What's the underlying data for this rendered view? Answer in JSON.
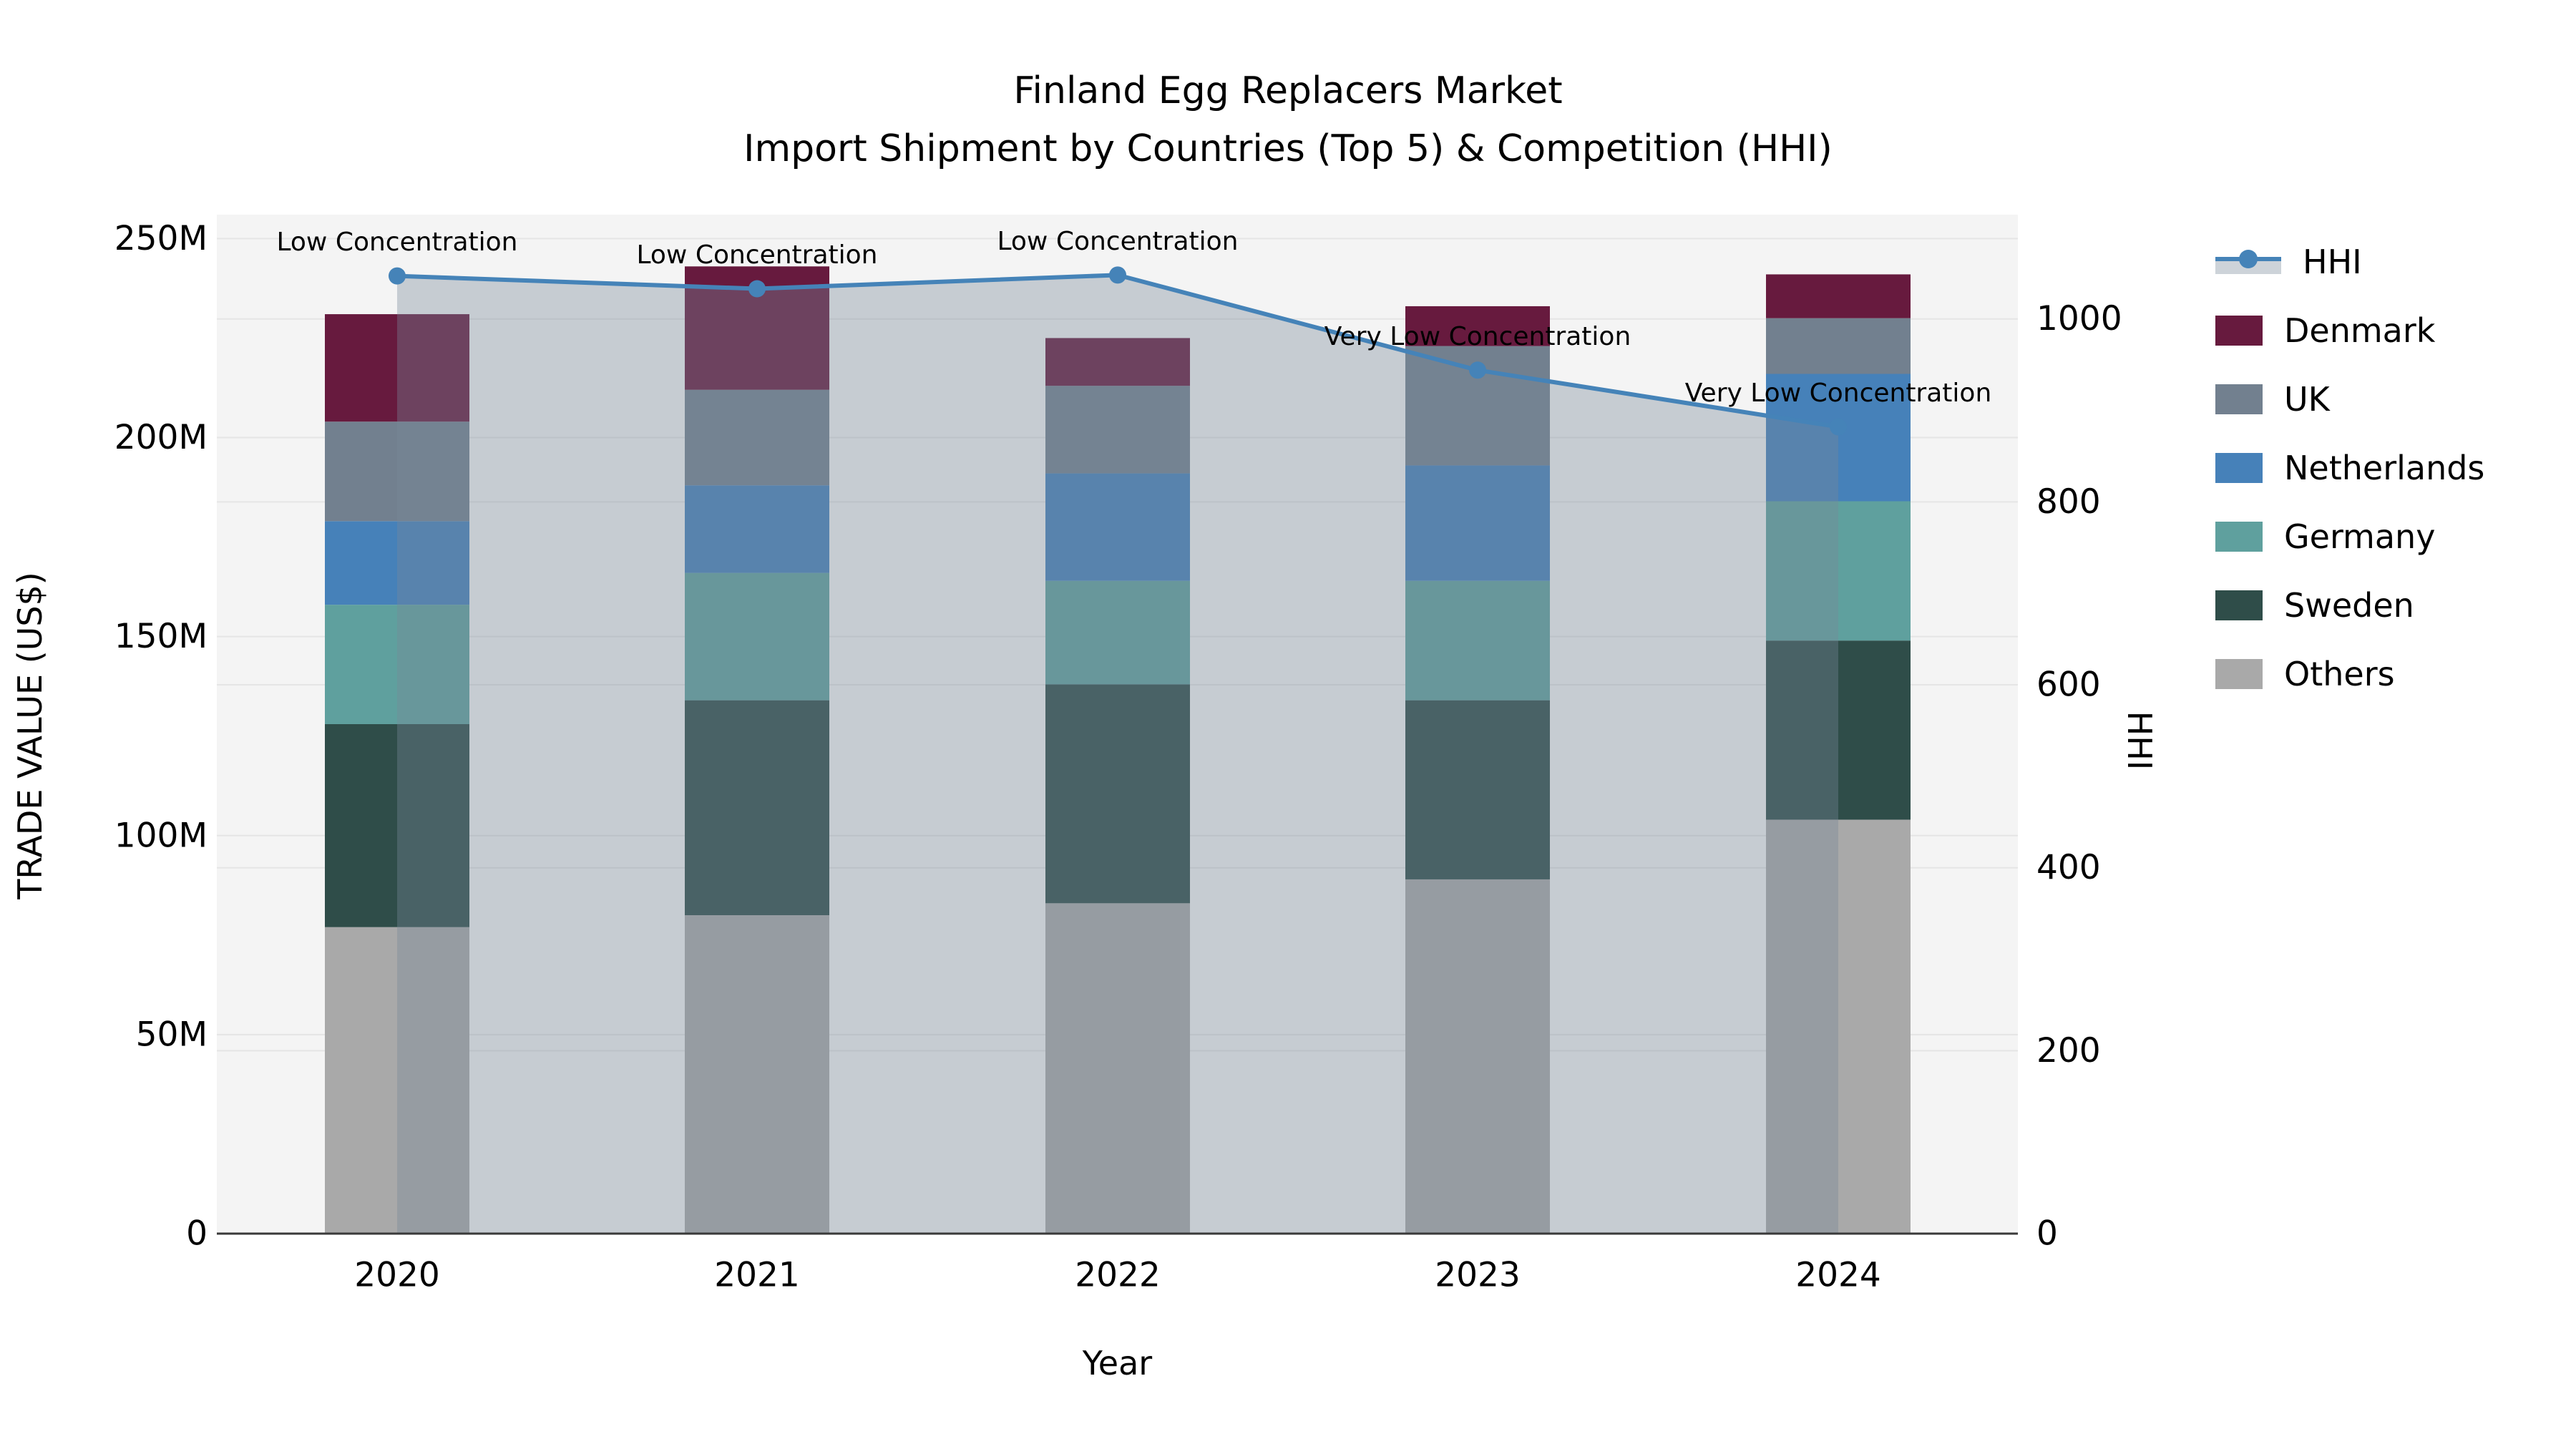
{
  "title": "Finland Egg Replacers Market",
  "subtitle": "Import Shipment by Countries (Top 5) & Competition (HHI)",
  "colors": {
    "figure_bg": "#ffffff",
    "plot_bg": "#f4f4f4",
    "grid": "#e5e5e5",
    "axis_line": "#3a3a3a",
    "text": "#000000",
    "hhi_line": "#4583b8",
    "hhi_band_fill": "rgba(119,136,153,0.37)"
  },
  "axes": {
    "x_label": "Year",
    "y_left_label": "TRADE VALUE (US$)",
    "y_right_label": "HHI",
    "y_left_tick_labels": [
      "0",
      "50M",
      "100M",
      "150M",
      "200M",
      "250M"
    ],
    "y_left_tick_values": [
      0,
      50,
      100,
      150,
      200,
      250
    ],
    "y_left_axis_top_value": 256,
    "y_right_tick_labels": [
      "0",
      "200",
      "400",
      "600",
      "800",
      "1000"
    ],
    "y_right_tick_values": [
      0,
      200,
      400,
      600,
      800,
      1000
    ],
    "y_right_axis_top_value": 1114,
    "grid": "on"
  },
  "chart_data": {
    "type": "combo: stacked bar (left axis) + line with shaded area (right axis)",
    "categories": [
      "2020",
      "2021",
      "2022",
      "2023",
      "2024"
    ],
    "unit": "US$ millions",
    "stack_order_bottom_to_top": [
      "Others",
      "Sweden",
      "Germany",
      "Netherlands",
      "UK",
      "Denmark"
    ],
    "series": [
      {
        "name": "Others",
        "color": "#a9a9a9",
        "values": [
          77,
          80,
          83,
          89,
          104
        ]
      },
      {
        "name": "Sweden",
        "color": "#2f4d49",
        "values": [
          51,
          54,
          55,
          45,
          45
        ]
      },
      {
        "name": "Germany",
        "color": "#5fa09e",
        "values": [
          30,
          32,
          26,
          30,
          35
        ]
      },
      {
        "name": "Netherlands",
        "color": "#4681b9",
        "values": [
          21,
          22,
          27,
          29,
          32
        ]
      },
      {
        "name": "UK",
        "color": "#72808f",
        "values": [
          25,
          24,
          22,
          30,
          14
        ]
      },
      {
        "name": "Denmark",
        "color": "#671a3e",
        "values": [
          27,
          31,
          12,
          10,
          11
        ]
      }
    ],
    "bar_totals": [
      231,
      243,
      225,
      233,
      241
    ],
    "line_series": {
      "name": "HHI",
      "values": [
        1047,
        1033,
        1048,
        944,
        882
      ],
      "axis": "right"
    },
    "annotations": [
      {
        "category": "2020",
        "text": "Low Concentration"
      },
      {
        "category": "2021",
        "text": "Low Concentration"
      },
      {
        "category": "2022",
        "text": "Low Concentration"
      },
      {
        "category": "2023",
        "text": "Very Low Concentration"
      },
      {
        "category": "2024",
        "text": "Very Low Concentration"
      }
    ],
    "legend_order": [
      "HHI",
      "Denmark",
      "UK",
      "Netherlands",
      "Germany",
      "Sweden",
      "Others"
    ],
    "legend_position": "right"
  }
}
